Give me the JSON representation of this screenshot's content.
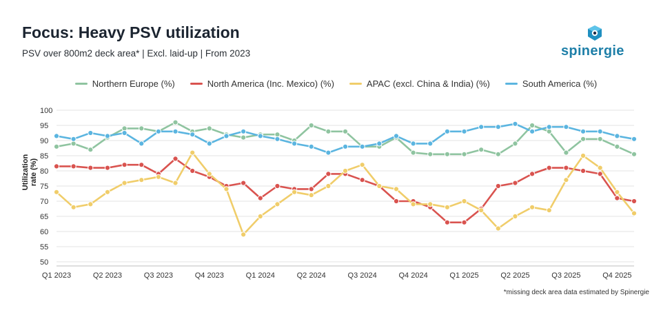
{
  "header": {
    "title": "Focus: Heavy PSV utilization",
    "subtitle": "PSV over 800m2 deck area* | Excl. laid-up | From 2023",
    "logo_text": "spinergie"
  },
  "footnote": "*missing deck area data estimated by Spinergie",
  "chart_data": {
    "type": "line",
    "ylabel": "Utilization rate (%)",
    "ylim": [
      50,
      100
    ],
    "yticks": [
      50,
      55,
      60,
      65,
      70,
      75,
      80,
      85,
      90,
      95,
      100
    ],
    "xtick_labels": [
      "Q1 2023",
      "Q2 2023",
      "Q3 2023",
      "Q4 2023",
      "Q1 2024",
      "Q2 2024",
      "Q3 2024",
      "Q4 2024",
      "Q1 2025",
      "Q2 2025",
      "Q3 2025",
      "Q4 2025"
    ],
    "points_per_period": 3,
    "legend_position": "top-center",
    "grid": "horizontal",
    "series": [
      {
        "name": "Northern Europe (%)",
        "color": "#8fc4a0",
        "values": [
          88,
          89,
          87,
          91,
          94,
          94,
          93,
          96,
          93,
          94,
          92,
          91,
          92,
          92,
          90,
          95,
          93,
          93,
          88,
          88,
          91,
          86,
          85.5,
          85.5,
          85.5,
          87,
          85.5,
          89,
          95,
          93,
          86,
          90.5,
          90.5,
          88,
          85.5
        ]
      },
      {
        "name": "North America (Inc. Mexico) (%)",
        "color": "#d9534f",
        "values": [
          81.5,
          81.5,
          81,
          81,
          82,
          82,
          79,
          84,
          80,
          78,
          75,
          76,
          71,
          75,
          74,
          74,
          79,
          79,
          77,
          75,
          70,
          70,
          68,
          63,
          63,
          67.5,
          75,
          76,
          79,
          81,
          81,
          80,
          79,
          71,
          70
        ]
      },
      {
        "name": "APAC (excl. China & India) (%)",
        "color": "#f0cd6a",
        "values": [
          73,
          68,
          69,
          73,
          76,
          77,
          78,
          76,
          86,
          79,
          74,
          59,
          65,
          69,
          73,
          72,
          75,
          80,
          82,
          75,
          74,
          69,
          69,
          68,
          70,
          67,
          61,
          65,
          68,
          67,
          77,
          85,
          81,
          73,
          66
        ]
      },
      {
        "name": "South America (%)",
        "color": "#5bb5e0",
        "values": [
          91.5,
          90.5,
          92.5,
          91.5,
          92.5,
          89,
          93,
          93,
          92,
          89,
          91.5,
          93,
          91.5,
          90.5,
          89,
          88,
          86,
          88,
          88,
          89,
          91.5,
          89,
          89,
          93,
          93,
          94.5,
          94.5,
          95.5,
          93,
          94.5,
          94.5,
          93,
          93,
          91.5,
          90.5
        ]
      }
    ]
  }
}
